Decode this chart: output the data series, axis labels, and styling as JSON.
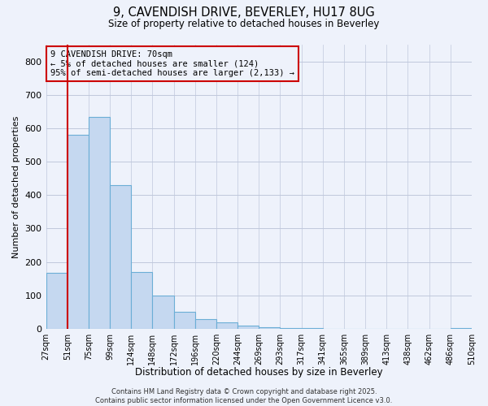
{
  "title": "9, CAVENDISH DRIVE, BEVERLEY, HU17 8UG",
  "subtitle": "Size of property relative to detached houses in Beverley",
  "xlabel": "Distribution of detached houses by size in Beverley",
  "ylabel": "Number of detached properties",
  "bar_values": [
    168,
    580,
    635,
    430,
    170,
    100,
    50,
    30,
    20,
    10,
    5,
    3,
    2,
    1,
    1,
    1,
    1,
    1,
    1,
    2
  ],
  "bar_labels": [
    "27sqm",
    "51sqm",
    "75sqm",
    "99sqm",
    "124sqm",
    "148sqm",
    "172sqm",
    "196sqm",
    "220sqm",
    "244sqm",
    "269sqm",
    "293sqm",
    "317sqm",
    "341sqm",
    "365sqm",
    "389sqm",
    "413sqm",
    "438sqm",
    "462sqm",
    "486sqm",
    "510sqm"
  ],
  "bar_color": "#c5d8f0",
  "bar_edge_color": "#6baed6",
  "highlight_color": "#cc0000",
  "ylim": [
    0,
    850
  ],
  "yticks": [
    0,
    100,
    200,
    300,
    400,
    500,
    600,
    700,
    800
  ],
  "annotation_title": "9 CAVENDISH DRIVE: 70sqm",
  "annotation_line1": "← 5% of detached houses are smaller (124)",
  "annotation_line2": "95% of semi-detached houses are larger (2,133) →",
  "annotation_box_color": "#cc0000",
  "footer_line1": "Contains HM Land Registry data © Crown copyright and database right 2025.",
  "footer_line2": "Contains public sector information licensed under the Open Government Licence v3.0.",
  "bg_color": "#eef2fb",
  "grid_color": "#c0c8dc",
  "fig_width": 6.0,
  "fig_height": 5.0,
  "dpi": 100
}
